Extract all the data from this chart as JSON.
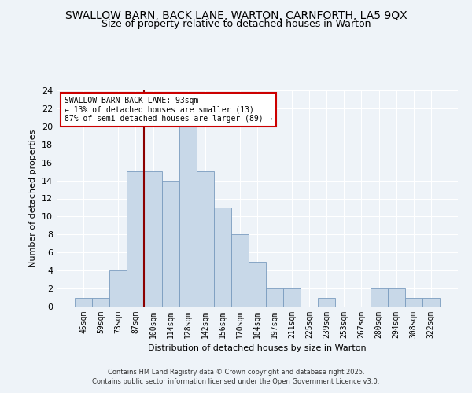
{
  "title1": "SWALLOW BARN, BACK LANE, WARTON, CARNFORTH, LA5 9QX",
  "title2": "Size of property relative to detached houses in Warton",
  "xlabel": "Distribution of detached houses by size in Warton",
  "ylabel": "Number of detached properties",
  "categories": [
    "45sqm",
    "59sqm",
    "73sqm",
    "87sqm",
    "100sqm",
    "114sqm",
    "128sqm",
    "142sqm",
    "156sqm",
    "170sqm",
    "184sqm",
    "197sqm",
    "211sqm",
    "225sqm",
    "239sqm",
    "253sqm",
    "267sqm",
    "280sqm",
    "294sqm",
    "308sqm",
    "322sqm"
  ],
  "values": [
    1,
    1,
    4,
    15,
    15,
    14,
    20,
    15,
    11,
    8,
    5,
    2,
    2,
    0,
    1,
    0,
    0,
    2,
    2,
    1,
    1
  ],
  "bar_color": "#c8d8e8",
  "bar_edge_color": "#7a9cbf",
  "vline_x": 3.5,
  "vline_color": "#8b0000",
  "annotation_title": "SWALLOW BARN BACK LANE: 93sqm",
  "annotation_line1": "← 13% of detached houses are smaller (13)",
  "annotation_line2": "87% of semi-detached houses are larger (89) →",
  "annotation_box_color": "#ffffff",
  "annotation_box_edge": "#cc0000",
  "ylim": [
    0,
    24
  ],
  "yticks": [
    0,
    2,
    4,
    6,
    8,
    10,
    12,
    14,
    16,
    18,
    20,
    22,
    24
  ],
  "footer": "Contains HM Land Registry data © Crown copyright and database right 2025.\nContains public sector information licensed under the Open Government Licence v3.0.",
  "bg_color": "#eef3f8",
  "grid_color": "#ffffff",
  "title_fontsize": 10,
  "subtitle_fontsize": 9
}
